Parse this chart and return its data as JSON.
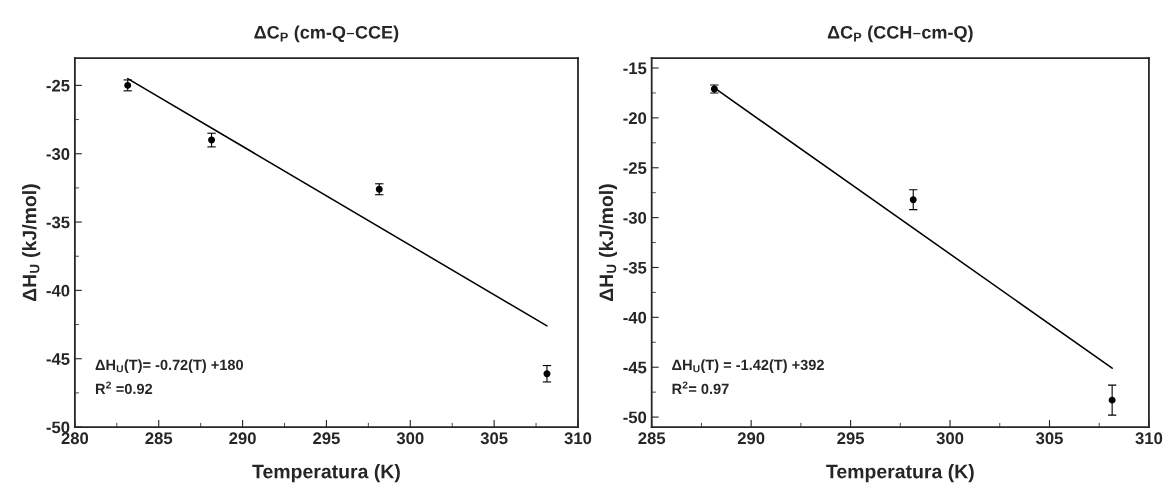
{
  "chart_data": [
    {
      "type": "scatter",
      "title": "ΔC$_{P}$ (cm-Q–CCE)",
      "xlabel": "Temperatura (K)",
      "ylabel": "ΔH$_{U}$ (kJ/mol)",
      "xlim": [
        280,
        310
      ],
      "xticks": [
        280,
        285,
        290,
        295,
        300,
        305,
        310
      ],
      "ylim": [
        -50,
        -23
      ],
      "yticks": [
        -50,
        -45,
        -40,
        -35,
        -30,
        -25
      ],
      "grid": false,
      "legend": false,
      "series": [
        {
          "marker": "circle",
          "color": "#000000",
          "x": [
            283.15,
            288.15,
            298.15,
            308.15
          ],
          "values": [
            -25.0,
            -29.0,
            -32.6,
            -46.1
          ],
          "errors": [
            0.4,
            0.5,
            0.4,
            0.6
          ]
        },
        {
          "type": "line",
          "color": "#000000",
          "x": [
            283.15,
            308.15
          ],
          "values": [
            -24.5,
            -42.6
          ]
        }
      ],
      "annotations": [
        "ΔH$_{U}$(T)= -0.72(T) +180",
        "R$^{2}$ =0.92"
      ]
    },
    {
      "type": "scatter",
      "title": "ΔC$_{P}$ (CCH–cm-Q)",
      "xlabel": "Temperatura (K)",
      "ylabel": "ΔH$_{U}$ (kJ/mol)",
      "xlim": [
        285,
        310
      ],
      "xticks": [
        285,
        290,
        295,
        300,
        305,
        310
      ],
      "ylim": [
        -51,
        -14
      ],
      "yticks": [
        -50,
        -45,
        -40,
        -35,
        -30,
        -25,
        -20,
        -15
      ],
      "grid": false,
      "legend": false,
      "series": [
        {
          "marker": "circle",
          "color": "#000000",
          "x": [
            288.15,
            298.15,
            308.15
          ],
          "values": [
            -17.1,
            -28.2,
            -48.3
          ],
          "errors": [
            0.4,
            1.0,
            1.5
          ]
        },
        {
          "type": "line",
          "color": "#000000",
          "x": [
            288.15,
            308.15
          ],
          "values": [
            -17.0,
            -45.1
          ]
        }
      ],
      "annotations": [
        "ΔH$_{U}$(T) = -1.42(T) +392",
        "R$^{2}$= 0.97"
      ]
    }
  ]
}
